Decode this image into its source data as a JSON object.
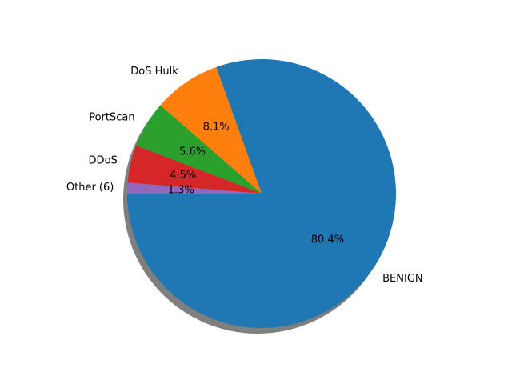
{
  "chart_data": {
    "type": "pie",
    "title": "",
    "shadow": true,
    "start_angle_deg": 180,
    "direction": "counterclockwise",
    "slices": [
      {
        "label": "BENIGN",
        "value": 80.4,
        "pct_text": "80.4%",
        "color": "#1f77b4"
      },
      {
        "label": "DoS Hulk",
        "value": 8.1,
        "pct_text": "8.1%",
        "color": "#ff7f0e"
      },
      {
        "label": "PortScan",
        "value": 5.6,
        "pct_text": "5.6%",
        "color": "#2ca02c"
      },
      {
        "label": "DDoS",
        "value": 4.5,
        "pct_text": "4.5%",
        "color": "#d62728"
      },
      {
        "label": "Other (6)",
        "value": 1.3,
        "pct_text": "1.3%",
        "color": "#9467bd"
      }
    ]
  }
}
